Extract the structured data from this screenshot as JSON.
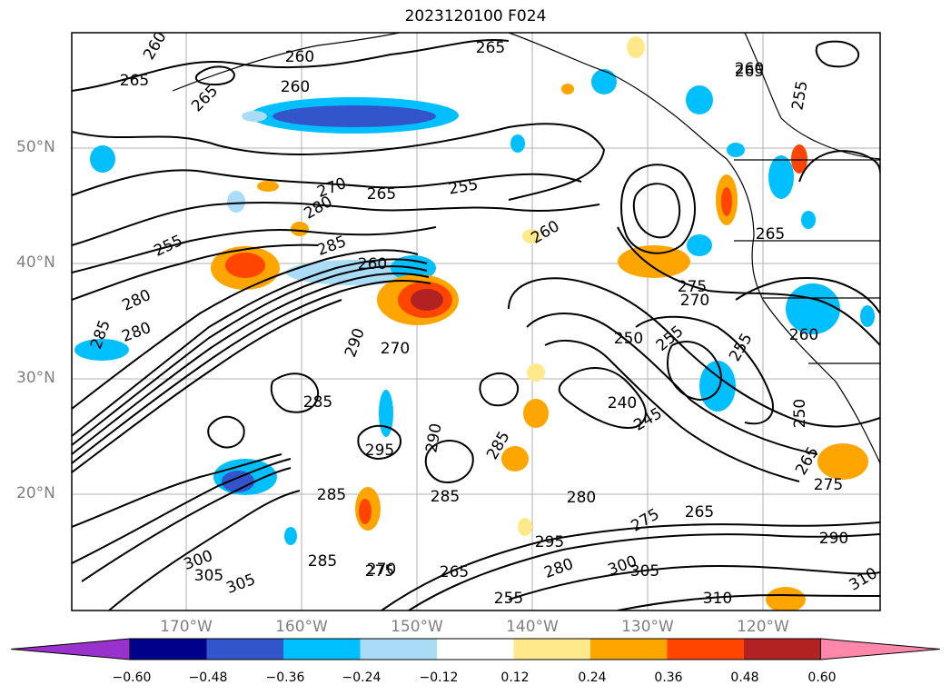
{
  "title": "2023120100 F024",
  "axes": {
    "lat_labels": [
      "50°N",
      "40°N",
      "30°N",
      "20°N"
    ],
    "lon_labels": [
      "170°W",
      "160°W",
      "150°W",
      "140°W",
      "130°W",
      "120°W"
    ]
  },
  "colorbar": {
    "colors": [
      "#9932cc",
      "#00008b",
      "#3355cc",
      "#00bfff",
      "#aadcf7",
      "#ffffff",
      "#ffe98a",
      "#ffa500",
      "#ff4500",
      "#b22222",
      "#ff88aa"
    ],
    "tick_labels": [
      "−0.60",
      "−0.48",
      "−0.36",
      "−0.24",
      "−0.12",
      "0.12",
      "0.24",
      "0.36",
      "0.48",
      "0.60"
    ]
  },
  "contour_labels": [
    "260",
    "265",
    "265",
    "265",
    "260",
    "260",
    "265",
    "255",
    "270",
    "280",
    "265",
    "255",
    "260",
    "255",
    "260",
    "265",
    "280",
    "285",
    "260",
    "285",
    "280",
    "290",
    "270",
    "250",
    "255",
    "255",
    "285",
    "295",
    "290",
    "285",
    "240",
    "245",
    "250",
    "265",
    "275",
    "280",
    "285",
    "275",
    "265",
    "295",
    "285",
    "280",
    "300",
    "305",
    "310",
    "310",
    "290",
    "305",
    "300",
    "305",
    "285",
    "270",
    "275",
    "265",
    "255",
    "260",
    "275",
    "270"
  ]
}
